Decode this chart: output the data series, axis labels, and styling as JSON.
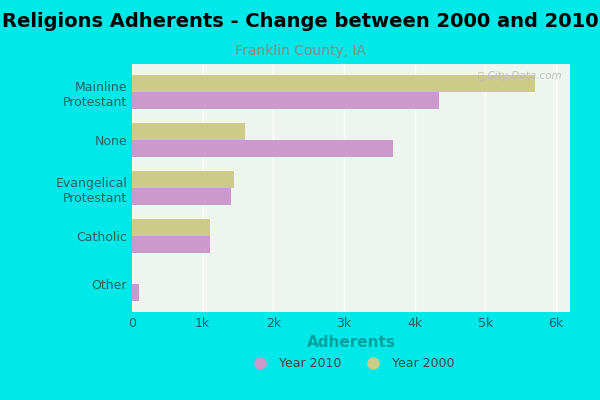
{
  "title": "Religions Adherents - Change between 2000 and 2010",
  "subtitle": "Franklin County, IA",
  "xlabel": "Adherents",
  "categories": [
    "Mainline\nProtestant",
    "None",
    "Evangelical\nProtestant",
    "Catholic",
    "Other"
  ],
  "values_2010": [
    4350,
    3700,
    1400,
    1100,
    100
  ],
  "values_2000": [
    5700,
    1600,
    1450,
    1100,
    0
  ],
  "color_2010": "#cc99cc",
  "color_2000": "#cccc88",
  "bg_outer": "#00e8e8",
  "bg_plot_color": "#eef5ee",
  "xlim": [
    0,
    6200
  ],
  "xticks": [
    0,
    1000,
    2000,
    3000,
    4000,
    5000,
    6000
  ],
  "xticklabels": [
    "0",
    "1k",
    "2k",
    "3k",
    "4k",
    "5k",
    "6k"
  ],
  "title_fontsize": 14,
  "subtitle_fontsize": 10,
  "xlabel_fontsize": 11,
  "tick_fontsize": 9,
  "ylabel_fontsize": 9,
  "bar_height": 0.35,
  "watermark": "ⓘ City-Data.com",
  "legend_2010": "Year 2010",
  "legend_2000": "Year 2000",
  "text_color": "#2a6060",
  "xlabel_color": "#00a0a0",
  "subtitle_color": "#888888",
  "grid_color": "#ffffff",
  "legend_color": "#444444"
}
